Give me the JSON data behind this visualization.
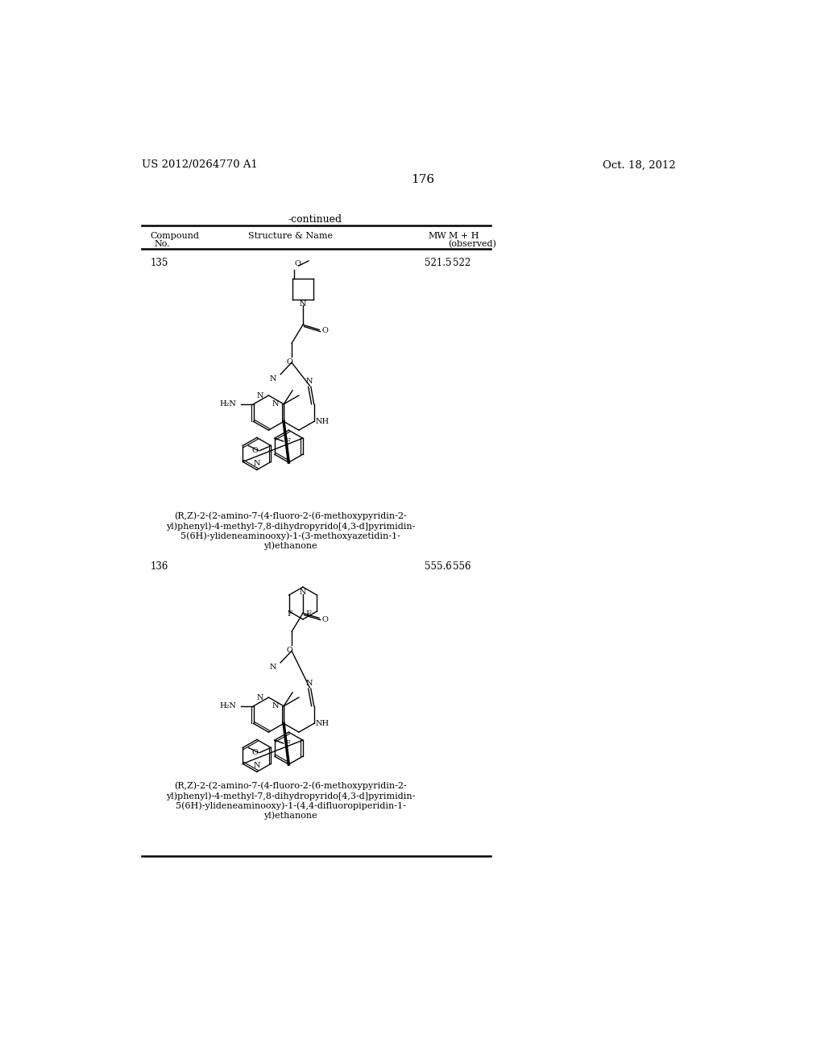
{
  "page_number": "176",
  "patent_number": "US 2012/0264770 A1",
  "patent_date": "Oct. 18, 2012",
  "continued_label": "-continued",
  "compound_135": {
    "number": "135",
    "mw": "521.5",
    "observed": "522",
    "name_lines": [
      "(R,Z)-2-(2-amino-7-(4-fluoro-2-(6-methoxypyridin-2-",
      "yl)phenyl)-4-methyl-7,8-dihydropyrido[4,3-d]pyrimidin-",
      "5(6H)-ylideneaminooxy)-1-(3-methoxyazetidin-1-",
      "yl)ethanone"
    ]
  },
  "compound_136": {
    "number": "136",
    "mw": "555.6",
    "observed": "556",
    "name_lines": [
      "(R,Z)-2-(2-amino-7-(4-fluoro-2-(6-methoxypyridin-2-",
      "yl)phenyl)-4-methyl-7,8-dihydropyrido[4,3-d]pyrimidin-",
      "5(6H)-ylideneaminooxy)-1-(4,4-difluoropiperidin-1-",
      "yl)ethanone"
    ]
  },
  "bg_color": "#ffffff",
  "text_color": "#000000"
}
